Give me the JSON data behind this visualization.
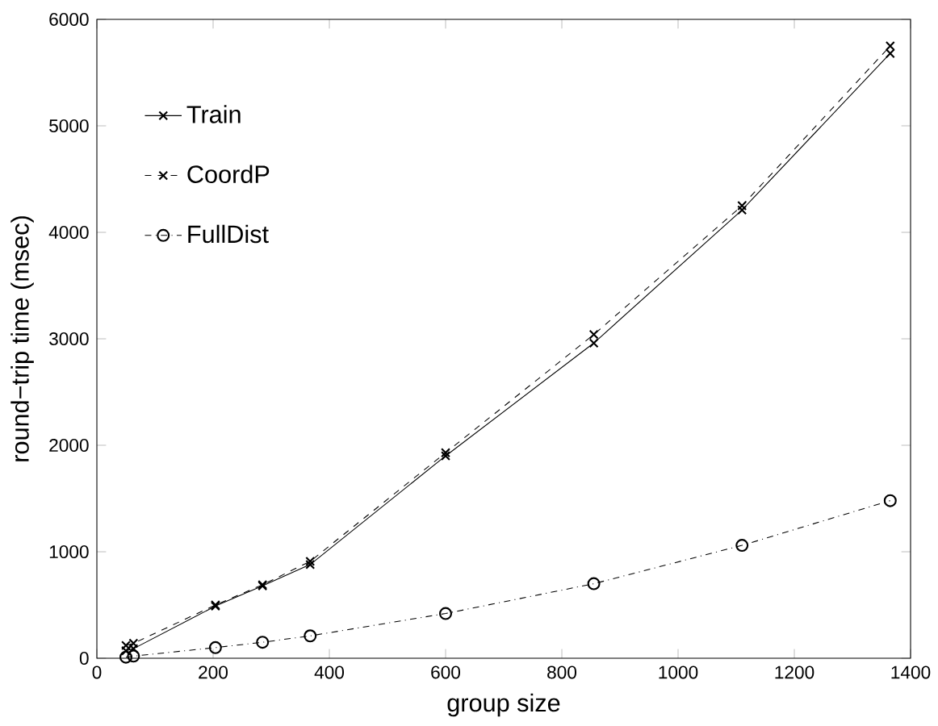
{
  "chart_data": {
    "type": "line",
    "xlabel": "group size",
    "ylabel": "round−trip time (msec)",
    "x": [
      50,
      63,
      204,
      285,
      367,
      600,
      855,
      1110,
      1365
    ],
    "series": [
      {
        "name": "Train",
        "color": "#000000",
        "line_style": "solid",
        "marker": "cross",
        "values": [
          70,
          90,
          490,
          680,
          880,
          1900,
          2960,
          4210,
          5680
        ]
      },
      {
        "name": "CoordP",
        "color": "#000000",
        "line_style": "dashed",
        "marker": "cross",
        "values": [
          120,
          140,
          500,
          690,
          910,
          1930,
          3040,
          4250,
          5750
        ]
      },
      {
        "name": "FullDist",
        "color": "#000000",
        "line_style": "dotted",
        "marker": "circle",
        "values": [
          10,
          20,
          100,
          150,
          210,
          420,
          700,
          1060,
          1480
        ]
      }
    ],
    "xlim": [
      0,
      1400
    ],
    "ylim": [
      0,
      6000
    ],
    "xticks": [
      0,
      200,
      400,
      600,
      800,
      1000,
      1200,
      1400
    ],
    "yticks": [
      0,
      1000,
      2000,
      3000,
      4000,
      5000,
      6000
    ],
    "legend": "top left"
  }
}
